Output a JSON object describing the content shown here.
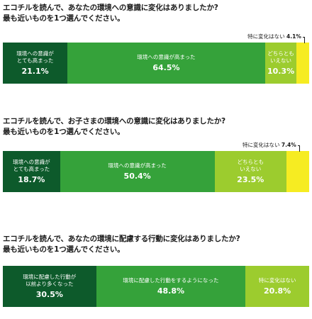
{
  "colors": {
    "dark_green": "#0d5a2b",
    "green": "#35a23a",
    "light_green": "#9ccc2e",
    "yellow": "#f6ec22",
    "light_text": "#ffffff",
    "dark_text": "#1a1a1a"
  },
  "chart_data": [
    {
      "type": "bar",
      "stacked": true,
      "orientation": "horizontal",
      "title": "エコチルを読んで、あなたの環境への意識に変化はありましたか?\n最も近いものを1つ選んでください。",
      "series": [
        {
          "name": "環境への意識が\nとても高まった",
          "value": 21.1,
          "label": "21.1%"
        },
        {
          "name": "環境への意識が高まった",
          "value": 64.5,
          "label": "64.5%"
        },
        {
          "name": "どちらとも\nいえない",
          "value": 10.3,
          "label": "10.3%"
        },
        {
          "name": "特に変化はない",
          "value": 4.1,
          "label": "4.1%"
        }
      ]
    },
    {
      "type": "bar",
      "stacked": true,
      "orientation": "horizontal",
      "title": "エコチルを読んで、お子さまの環境への意識に変化はありましたか?\n最も近いものを1つ選んでください。",
      "series": [
        {
          "name": "環境への意識が\nとても高まった",
          "value": 18.7,
          "label": "18.7%"
        },
        {
          "name": "環境への意識が高まった",
          "value": 50.4,
          "label": "50.4%"
        },
        {
          "name": "どちらとも\nいえない",
          "value": 23.5,
          "label": "23.5%"
        },
        {
          "name": "特に変化はない",
          "value": 7.4,
          "label": "7.4%"
        }
      ]
    },
    {
      "type": "bar",
      "stacked": true,
      "orientation": "horizontal",
      "title": "エコチルを読んで、あなたの環境に配慮する行動に変化はありましたか?\n最も近いものを1つ選んでください。",
      "series": [
        {
          "name": "環境に配慮した行動が\n以前より多くなった",
          "value": 30.5,
          "label": "30.5%"
        },
        {
          "name": "環境に配慮した行動をするようになった",
          "value": 48.8,
          "label": "48.8%"
        },
        {
          "name": "特に変化はない",
          "value": 20.8,
          "label": "20.8%"
        }
      ]
    }
  ]
}
